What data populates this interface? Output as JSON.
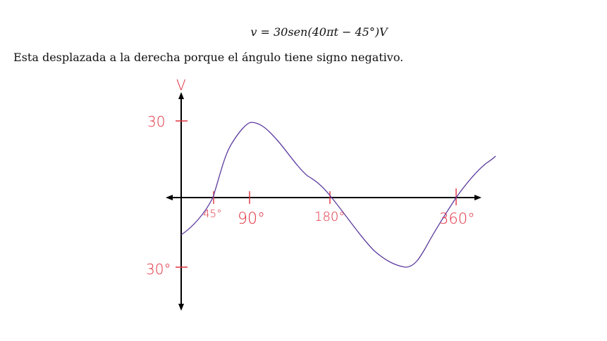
{
  "equation": "v = 30sen(40πt − 45°)V",
  "caption": "Esta desplazada a la derecha porque el ángulo tiene signo negativo.",
  "graph": {
    "y_axis_label": "V",
    "y_tick_top": "30",
    "y_tick_bottom": "30°",
    "x_ticks": [
      "45°",
      "90°",
      "180°",
      "360°"
    ],
    "axis_color": "#000000",
    "curve_color": "#5b3a9e",
    "label_color": "#e0303f"
  }
}
